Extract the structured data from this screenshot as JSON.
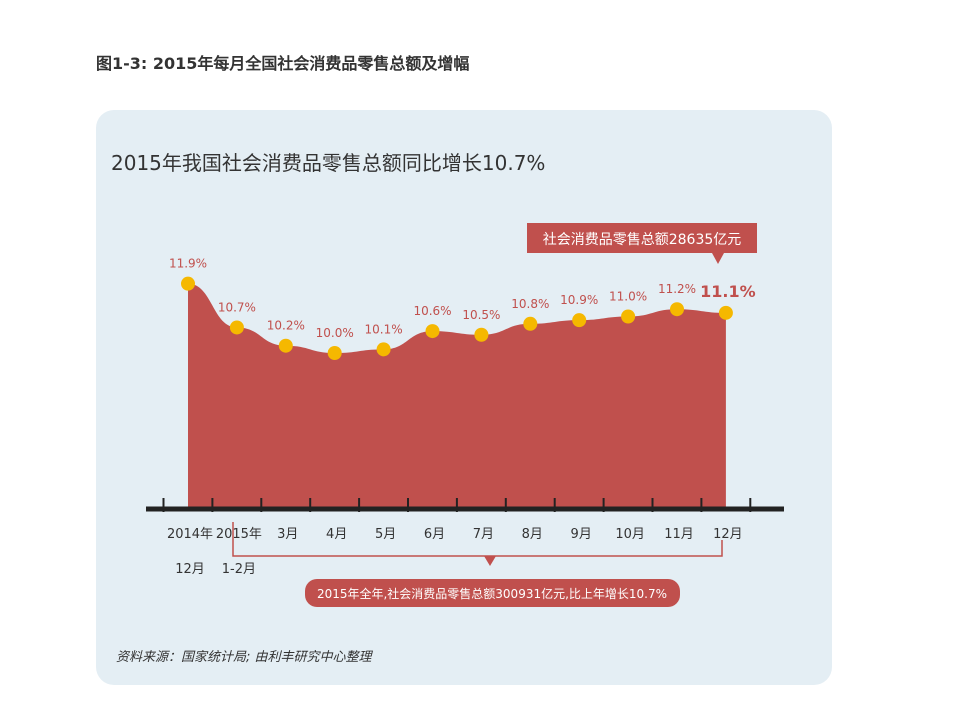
{
  "figure_caption": "图1-3: 2015年每月全国社会消费品零售总额及增幅",
  "source_note": "资料来源：国家统计局; 由利丰研究中心整理",
  "colors": {
    "area": "#c0504d",
    "point": "#f5b800",
    "label": "#c0504d",
    "axis": "#222222",
    "panel_bg": "#e4eef4",
    "callout_bg": "#c0504d",
    "callout_text": "#ffffff"
  },
  "chart_data": {
    "type": "area",
    "title": "2015年我国社会消费品零售总额同比增长10.7%",
    "unit": "%",
    "categories": [
      "2014年12月",
      "2015年1-2月",
      "3月",
      "4月",
      "5月",
      "6月",
      "7月",
      "8月",
      "9月",
      "10月",
      "11月",
      "12月"
    ],
    "tick_labels": [
      {
        "line1": "2014年",
        "line2": "12月"
      },
      {
        "line1": "2015年",
        "line2": "1-2月"
      },
      {
        "line1": "3月",
        "line2": ""
      },
      {
        "line1": "4月",
        "line2": ""
      },
      {
        "line1": "5月",
        "line2": ""
      },
      {
        "line1": "6月",
        "line2": ""
      },
      {
        "line1": "7月",
        "line2": ""
      },
      {
        "line1": "8月",
        "line2": ""
      },
      {
        "line1": "9月",
        "line2": ""
      },
      {
        "line1": "10月",
        "line2": ""
      },
      {
        "line1": "11月",
        "line2": ""
      },
      {
        "line1": "12月",
        "line2": ""
      }
    ],
    "values": [
      11.9,
      10.7,
      10.2,
      10.0,
      10.1,
      10.6,
      10.5,
      10.8,
      10.9,
      11.0,
      11.2,
      11.1
    ],
    "data_labels": [
      "11.9%",
      "10.7%",
      "10.2%",
      "10.0%",
      "10.1%",
      "10.6%",
      "10.5%",
      "10.8%",
      "10.9%",
      "11.0%",
      "11.2%",
      "11.1%"
    ],
    "highlight_index": 11,
    "annotations": {
      "top_callout": "社会消费品零售总额28635亿元",
      "bottom_callout": "2015年全年,社会消费品零售总额300931亿元,比上年增长10.7%"
    },
    "legend": "none",
    "grid": false
  }
}
